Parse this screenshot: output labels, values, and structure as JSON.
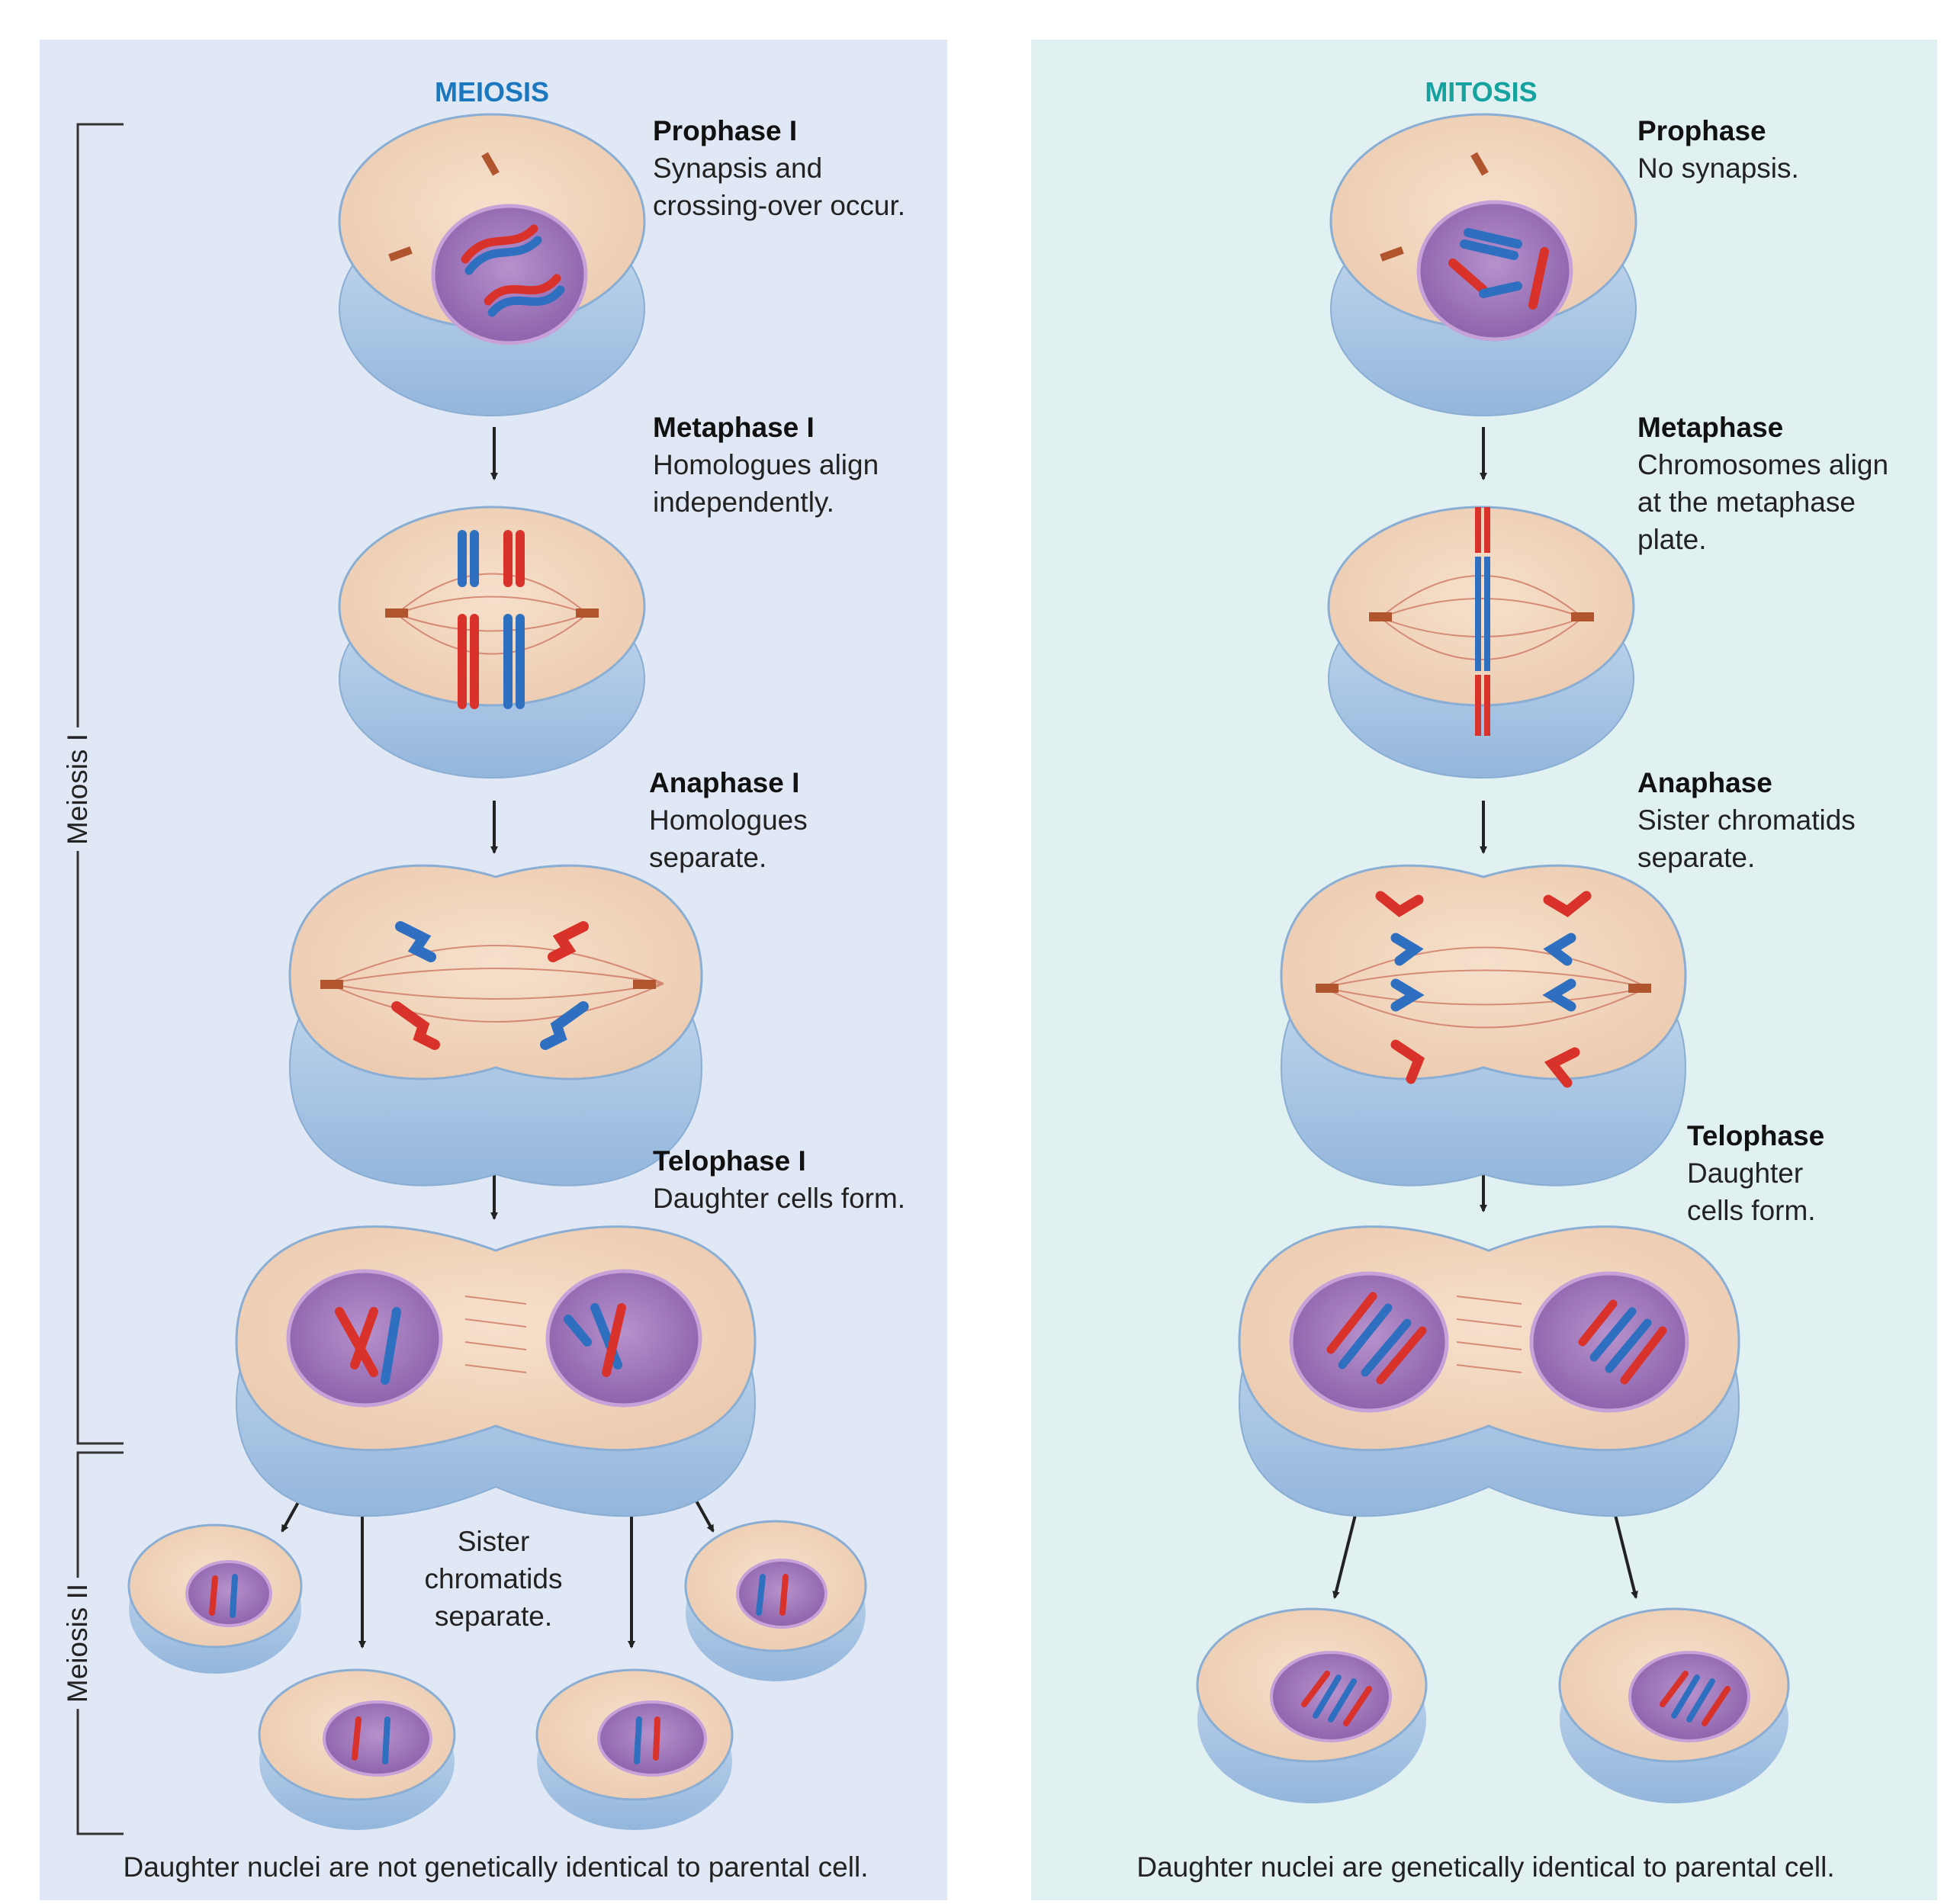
{
  "meiosis": {
    "title": "MEIOSIS",
    "title_color": "#1b78bf",
    "stages": [
      {
        "name": "Prophase I",
        "lines": [
          "Synapsis and",
          "crossing-over occur."
        ]
      },
      {
        "name": "Metaphase I",
        "lines": [
          "Homologues align",
          "independently."
        ]
      },
      {
        "name": "Anaphase I",
        "lines": [
          "Homologues",
          "separate."
        ]
      },
      {
        "name": "Telophase I",
        "lines": [
          "Daughter cells form."
        ]
      }
    ],
    "meiosis2_lines": [
      "Sister",
      "chromatids",
      "separate."
    ],
    "bracket_labels": {
      "meiosis1": "Meiosis I",
      "meiosis2": "Meiosis II"
    },
    "footer": "Daughter nuclei are not genetically identical to parental cell."
  },
  "mitosis": {
    "title": "MITOSIS",
    "title_color": "#16a3a0",
    "stages": [
      {
        "name": "Prophase",
        "lines": [
          "No synapsis."
        ]
      },
      {
        "name": "Metaphase",
        "lines": [
          "Chromosomes align",
          "at  the metaphase",
          "plate."
        ]
      },
      {
        "name": "Anaphase",
        "lines": [
          "Sister chromatids",
          "separate."
        ]
      },
      {
        "name": "Telophase",
        "lines": [
          "Daughter",
          "cells form."
        ]
      }
    ],
    "footer": "Daughter nuclei are genetically identical to parental cell."
  },
  "colors": {
    "maternal": "#d8322a",
    "paternal": "#2f6fc0",
    "cytoplasm": "#f3d9c1",
    "membrane": "#a9c7e6",
    "nucleus": "#9a6fb6"
  }
}
